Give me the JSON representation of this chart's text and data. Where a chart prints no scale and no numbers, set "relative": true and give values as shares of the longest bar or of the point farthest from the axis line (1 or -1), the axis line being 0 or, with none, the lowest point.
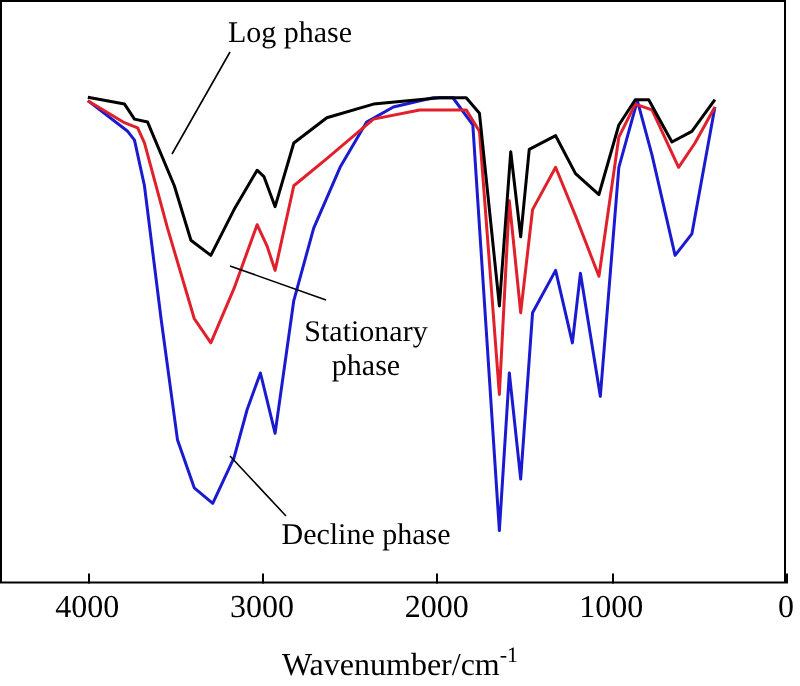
{
  "chart_data": {
    "type": "line",
    "relative": true,
    "xlabel": "Wavenumber/cm$^{-1}$",
    "xlim": [
      4500,
      0
    ],
    "xticks": [
      4000,
      3000,
      2000,
      1000,
      0
    ],
    "grid": false,
    "legend": false,
    "marker": "none",
    "line_style": "solid",
    "series": [
      {
        "color": "#000000",
        "x": [
          3997,
          3787,
          3730,
          3655,
          3502,
          3407,
          3293,
          3160,
          3028,
          2989,
          2925,
          2818,
          2629,
          2362,
          1983,
          1831,
          1755,
          1641,
          1576,
          1519,
          1470,
          1319,
          1205,
          1071,
          957,
          863,
          786,
          653,
          539,
          407
        ],
        "values": [
          1.0,
          0.986,
          0.955,
          0.949,
          0.818,
          0.706,
          0.675,
          0.769,
          0.85,
          0.837,
          0.775,
          0.906,
          0.958,
          0.986,
          0.999,
          0.999,
          0.967,
          0.571,
          0.888,
          0.713,
          0.893,
          0.921,
          0.843,
          0.8,
          0.943,
          0.995,
          0.995,
          0.908,
          0.93,
          0.995
        ]
      },
      {
        "color": "#e0202a",
        "x": [
          3997,
          3795,
          3712,
          3673,
          3541,
          3388,
          3293,
          3160,
          3028,
          2971,
          2925,
          2818,
          2629,
          2362,
          2097,
          1831,
          1755,
          1641,
          1584,
          1519,
          1451,
          1319,
          1205,
          1071,
          957,
          863,
          767,
          615,
          521,
          407
        ],
        "values": [
          0.993,
          0.949,
          0.937,
          0.906,
          0.731,
          0.545,
          0.495,
          0.607,
          0.738,
          0.694,
          0.644,
          0.818,
          0.874,
          0.955,
          0.974,
          0.974,
          0.93,
          0.389,
          0.787,
          0.557,
          0.769,
          0.856,
          0.756,
          0.632,
          0.918,
          0.986,
          0.974,
          0.856,
          0.906,
          0.98
        ]
      },
      {
        "color": "#1a1ad0",
        "x": [
          3997,
          3769,
          3730,
          3673,
          3578,
          3484,
          3388,
          3282,
          3160,
          3085,
          3009,
          2925,
          2818,
          2704,
          2553,
          2401,
          2248,
          2021,
          1907,
          1793,
          1641,
          1584,
          1519,
          1451,
          1319,
          1223,
          1177,
          1063,
          957,
          851,
          767,
          635,
          539,
          407
        ],
        "values": [
          0.993,
          0.93,
          0.912,
          0.818,
          0.545,
          0.296,
          0.197,
          0.165,
          0.259,
          0.358,
          0.433,
          0.309,
          0.582,
          0.731,
          0.856,
          0.949,
          0.98,
          0.999,
          0.999,
          0.943,
          0.109,
          0.433,
          0.215,
          0.557,
          0.644,
          0.495,
          0.638,
          0.385,
          0.856,
          0.993,
          0.881,
          0.675,
          0.719,
          0.98
        ]
      }
    ],
    "annotations": [
      "Log phase",
      "Stationary phase",
      "Decline phase"
    ]
  }
}
